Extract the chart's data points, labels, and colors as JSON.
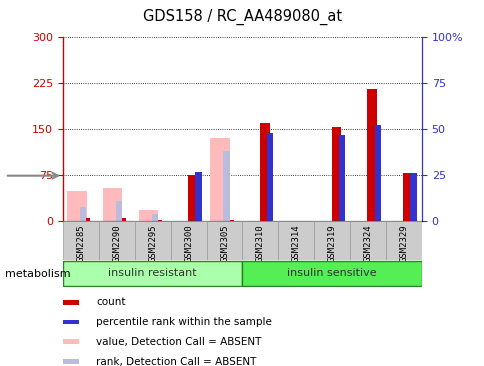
{
  "title": "GDS158 / RC_AA489080_at",
  "samples": [
    "GSM2285",
    "GSM2290",
    "GSM2295",
    "GSM2300",
    "GSM2305",
    "GSM2310",
    "GSM2314",
    "GSM2319",
    "GSM2324",
    "GSM2329"
  ],
  "red_bars": [
    5,
    5,
    2,
    75,
    3,
    160,
    1,
    153,
    215,
    78
  ],
  "blue_pct": [
    0,
    0,
    0,
    27,
    0,
    48,
    0,
    47,
    52,
    26
  ],
  "pink_bars": [
    50,
    55,
    18,
    0,
    135,
    0,
    0,
    0,
    0,
    0
  ],
  "lblue_pct": [
    8,
    11,
    4,
    0,
    38,
    0,
    0,
    0,
    0,
    0
  ],
  "ylim_left": [
    0,
    300
  ],
  "ylim_right": [
    0,
    100
  ],
  "yticks_left": [
    0,
    75,
    150,
    225,
    300
  ],
  "yticks_right": [
    0,
    25,
    50,
    75,
    100
  ],
  "color_red": "#cc0000",
  "color_blue": "#3333cc",
  "color_pink": "#ffbbbb",
  "color_lblue": "#bbbbdd",
  "bar_width": 0.55,
  "thin_bar_width": 0.18,
  "groups": [
    {
      "label": "insulin resistant",
      "start": 0,
      "end": 5,
      "color": "#aaffaa"
    },
    {
      "label": "insulin sensitive",
      "start": 5,
      "end": 10,
      "color": "#55ee55"
    }
  ],
  "group_header": "metabolism",
  "legend_items": [
    {
      "color": "#cc0000",
      "label": "count"
    },
    {
      "color": "#3333cc",
      "label": "percentile rank within the sample"
    },
    {
      "color": "#ffbbbb",
      "label": "value, Detection Call = ABSENT"
    },
    {
      "color": "#bbbbdd",
      "label": "rank, Detection Call = ABSENT"
    }
  ],
  "left_axis_color": "#cc0000",
  "right_axis_color": "#3333cc",
  "xtick_bg": "#cccccc",
  "plot_bg": "#ffffff"
}
